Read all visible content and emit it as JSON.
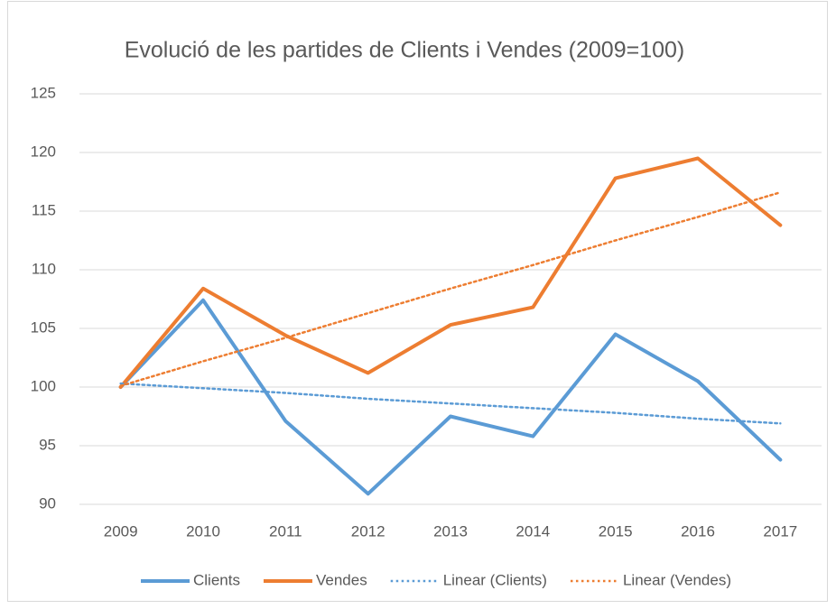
{
  "chart_data": {
    "type": "line",
    "title": "Evolució de les partides de Clients i Vendes (2009=100)",
    "categories": [
      "2009",
      "2010",
      "2011",
      "2012",
      "2013",
      "2014",
      "2015",
      "2016",
      "2017"
    ],
    "series": [
      {
        "name": "Clients",
        "color": "#5b9bd5",
        "line_style": "solid",
        "values": [
          100,
          107.4,
          97.1,
          90.9,
          97.5,
          95.8,
          104.5,
          100.5,
          93.8
        ]
      },
      {
        "name": "Vendes",
        "color": "#ed7d31",
        "line_style": "solid",
        "values": [
          100,
          108.4,
          104.4,
          101.2,
          105.3,
          106.8,
          117.8,
          119.5,
          113.8
        ]
      },
      {
        "name": "Linear (Clients)",
        "color": "#5b9bd5",
        "line_style": "dotted",
        "values": [
          100.3,
          99.9,
          99.5,
          99.0,
          98.6,
          98.2,
          97.8,
          97.3,
          96.9
        ]
      },
      {
        "name": "Linear (Vendes)",
        "color": "#ed7d31",
        "line_style": "dotted",
        "values": [
          100.1,
          102.2,
          104.2,
          106.3,
          108.4,
          110.4,
          112.5,
          114.5,
          116.6
        ]
      }
    ],
    "ylim": [
      90,
      125
    ],
    "yticks": [
      90,
      95,
      100,
      105,
      110,
      115,
      120,
      125
    ],
    "grid": true,
    "legend": "bottom"
  }
}
